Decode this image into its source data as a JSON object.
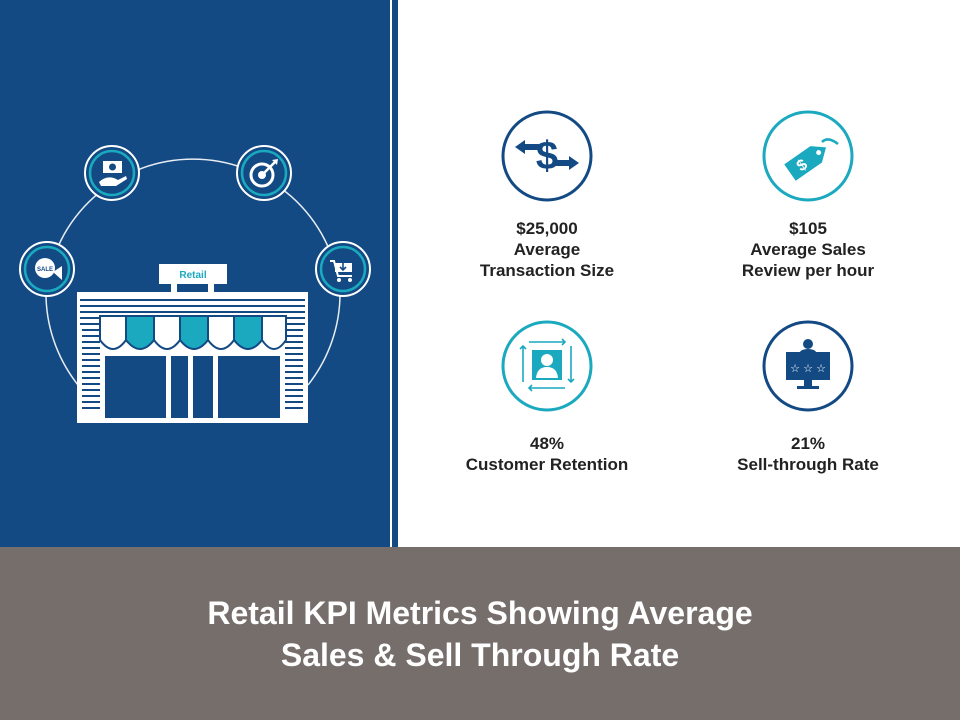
{
  "colors": {
    "navy": "#134a84",
    "teal": "#1aa9bf",
    "footer": "#756e6b",
    "text": "#222222"
  },
  "store": {
    "sign_label": "Retail",
    "orbit_icons": [
      "sale-badge-icon",
      "money-hand-icon",
      "target-icon",
      "shopping-cart-icon"
    ]
  },
  "metrics": [
    {
      "icon": "dollar-exchange-icon",
      "value": "$25,000",
      "label": "Average\nTransaction Size"
    },
    {
      "icon": "price-tag-icon",
      "value": "$105",
      "label": "Average Sales\nReview per hour"
    },
    {
      "icon": "customer-frame-icon",
      "value": "48%",
      "label": "Customer Retention"
    },
    {
      "icon": "monitor-rating-icon",
      "value": "21%",
      "label": "Sell-through Rate"
    }
  ],
  "footer": {
    "title": "Retail KPI Metrics Showing Average\nSales & Sell Through Rate"
  }
}
